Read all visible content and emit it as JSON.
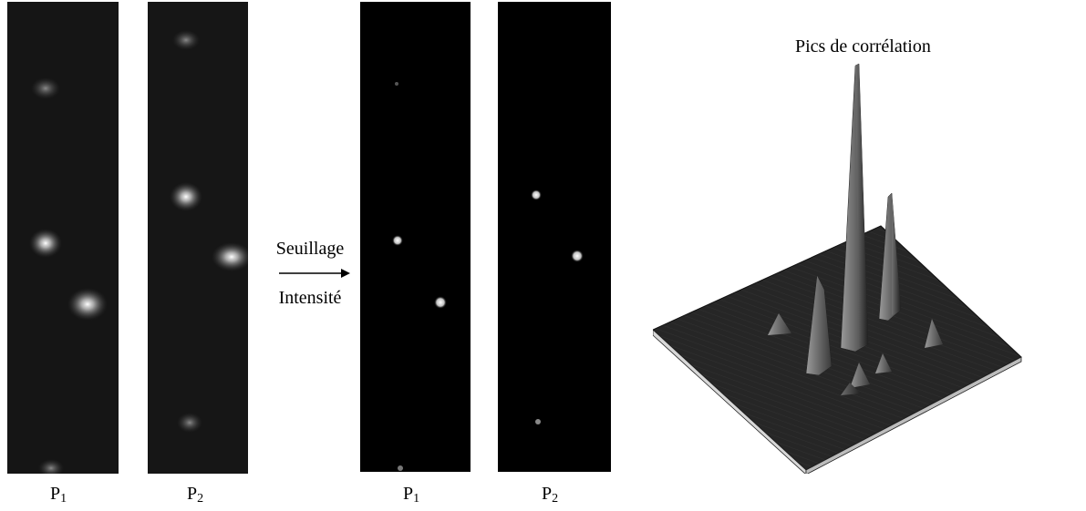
{
  "raw_images": [
    {
      "label_main": "P",
      "label_sub": "1"
    },
    {
      "label_main": "P",
      "label_sub": "2"
    }
  ],
  "thresholded_images": [
    {
      "label_main": "P",
      "label_sub": "1"
    },
    {
      "label_main": "P",
      "label_sub": "2"
    }
  ],
  "arrow": {
    "top_text": "Seuillage",
    "bottom_text": "Intensité"
  },
  "surface_plot": {
    "title": "Pics de corrélation"
  },
  "colors": {
    "panel_raw": "#151515",
    "panel_thresh": "#000000",
    "surface": "#2a2a2a"
  }
}
